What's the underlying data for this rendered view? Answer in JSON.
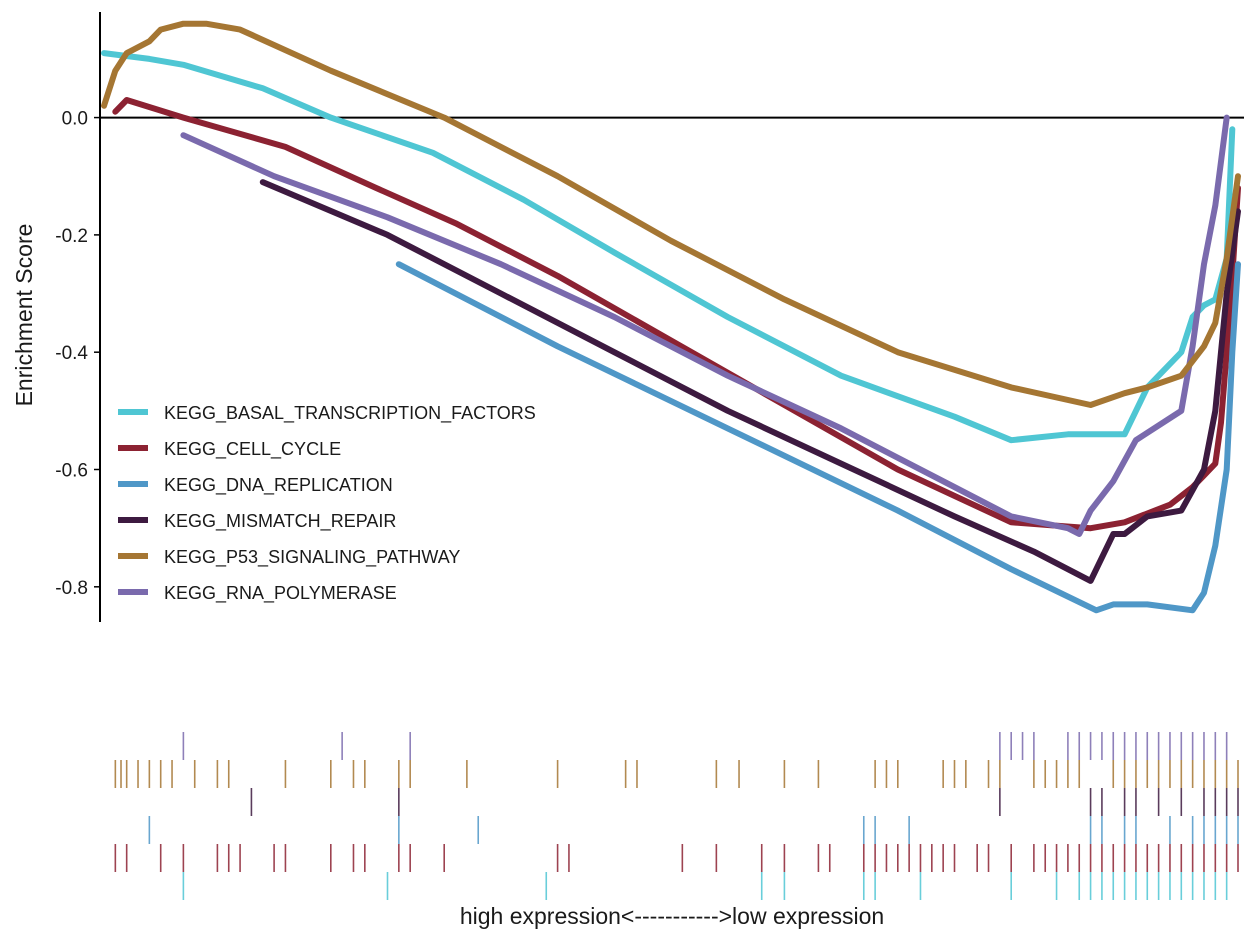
{
  "chart_data": {
    "type": "line",
    "title": "",
    "xlabel": "high expression<----------->low expression",
    "ylabel": "Enrichment Score",
    "ylim": [
      -0.86,
      0.18
    ],
    "xlim": [
      0,
      1
    ],
    "yticks": [
      0.0,
      -0.2,
      -0.4,
      -0.6,
      -0.8
    ],
    "ytick_labels": [
      "0.0",
      "-0.2",
      "-0.4",
      "-0.6",
      "-0.8"
    ],
    "reference_line": 0.0,
    "legend_position": "left-middle",
    "grid": false,
    "series": [
      {
        "name": "KEGG_BASAL_TRANSCRIPTION_FACTORS",
        "color": "#4fc6d3",
        "x": [
          0.0,
          0.04,
          0.07,
          0.14,
          0.2,
          0.29,
          0.37,
          0.45,
          0.55,
          0.65,
          0.75,
          0.8,
          0.85,
          0.88,
          0.9,
          0.92,
          0.95,
          0.96,
          0.97,
          0.98,
          0.99,
          0.995
        ],
        "y": [
          0.11,
          0.1,
          0.09,
          0.05,
          0.0,
          -0.06,
          -0.14,
          -0.23,
          -0.34,
          -0.44,
          -0.51,
          -0.55,
          -0.54,
          -0.54,
          -0.54,
          -0.46,
          -0.4,
          -0.34,
          -0.32,
          -0.31,
          -0.24,
          -0.02
        ]
      },
      {
        "name": "KEGG_CELL_CYCLE",
        "color": "#8c2232",
        "x": [
          0.01,
          0.02,
          0.07,
          0.16,
          0.24,
          0.31,
          0.4,
          0.5,
          0.6,
          0.7,
          0.8,
          0.87,
          0.9,
          0.94,
          0.96,
          0.97,
          0.98,
          0.985,
          0.99,
          0.995,
          1.0
        ],
        "y": [
          0.01,
          0.03,
          0.0,
          -0.05,
          -0.12,
          -0.18,
          -0.27,
          -0.38,
          -0.49,
          -0.6,
          -0.69,
          -0.7,
          -0.69,
          -0.66,
          -0.63,
          -0.61,
          -0.59,
          -0.52,
          -0.4,
          -0.27,
          -0.12
        ]
      },
      {
        "name": "KEGG_DNA_REPLICATION",
        "color": "#4f97c7",
        "x": [
          0.26,
          0.4,
          0.55,
          0.7,
          0.8,
          0.875,
          0.89,
          0.9,
          0.92,
          0.96,
          0.97,
          0.98,
          0.99,
          0.995,
          1.0
        ],
        "y": [
          -0.25,
          -0.39,
          -0.53,
          -0.67,
          -0.77,
          -0.84,
          -0.83,
          -0.83,
          -0.83,
          -0.84,
          -0.81,
          -0.73,
          -0.6,
          -0.4,
          -0.25
        ]
      },
      {
        "name": "KEGG_MISMATCH_REPAIR",
        "color": "#3d1a40",
        "x": [
          0.14,
          0.25,
          0.35,
          0.45,
          0.55,
          0.65,
          0.75,
          0.82,
          0.87,
          0.89,
          0.9,
          0.92,
          0.95,
          0.97,
          0.98,
          0.99,
          1.0
        ],
        "y": [
          -0.11,
          -0.2,
          -0.3,
          -0.4,
          -0.5,
          -0.59,
          -0.68,
          -0.74,
          -0.79,
          -0.71,
          -0.71,
          -0.68,
          -0.67,
          -0.6,
          -0.5,
          -0.3,
          -0.16
        ]
      },
      {
        "name": "KEGG_RNA_POLYMERASE",
        "color": "#7a6aad",
        "x": [
          0.07,
          0.15,
          0.25,
          0.35,
          0.45,
          0.55,
          0.65,
          0.75,
          0.8,
          0.85,
          0.86,
          0.87,
          0.89,
          0.91,
          0.95,
          0.96,
          0.97,
          0.98,
          0.99
        ],
        "y": [
          -0.03,
          -0.1,
          -0.17,
          -0.25,
          -0.34,
          -0.44,
          -0.53,
          -0.63,
          -0.68,
          -0.7,
          -0.71,
          -0.67,
          -0.62,
          -0.55,
          -0.5,
          -0.39,
          -0.25,
          -0.15,
          0.0
        ]
      },
      {
        "name": "KEGG_P53_SIGNALING_PATHWAY",
        "color": "#a57633",
        "x": [
          0.0,
          0.01,
          0.02,
          0.04,
          0.05,
          0.07,
          0.09,
          0.12,
          0.2,
          0.3,
          0.4,
          0.5,
          0.6,
          0.7,
          0.8,
          0.87,
          0.9,
          0.92,
          0.95,
          0.97,
          0.98,
          0.99,
          1.0
        ],
        "y": [
          0.02,
          0.08,
          0.11,
          0.13,
          0.15,
          0.16,
          0.16,
          0.15,
          0.08,
          0.0,
          -0.1,
          -0.21,
          -0.31,
          -0.4,
          -0.46,
          -0.49,
          -0.47,
          -0.46,
          -0.44,
          -0.39,
          -0.35,
          -0.24,
          -0.1
        ]
      }
    ],
    "rug_tracks": [
      {
        "series": "KEGG_RNA_POLYMERASE",
        "positions": [
          0.07,
          0.21,
          0.27,
          0.79,
          0.8,
          0.81,
          0.82,
          0.85,
          0.86,
          0.87,
          0.88,
          0.89,
          0.9,
          0.91,
          0.92,
          0.93,
          0.94,
          0.95,
          0.96,
          0.97,
          0.98,
          0.99
        ]
      },
      {
        "series": "KEGG_P53_SIGNALING_PATHWAY",
        "positions": [
          0.01,
          0.015,
          0.02,
          0.03,
          0.04,
          0.05,
          0.06,
          0.08,
          0.1,
          0.11,
          0.16,
          0.2,
          0.22,
          0.23,
          0.26,
          0.27,
          0.32,
          0.4,
          0.46,
          0.47,
          0.54,
          0.56,
          0.6,
          0.63,
          0.68,
          0.69,
          0.7,
          0.74,
          0.75,
          0.76,
          0.78,
          0.79,
          0.82,
          0.83,
          0.84,
          0.85,
          0.86,
          0.89,
          0.9,
          0.91,
          0.92,
          0.93,
          0.94,
          0.95,
          0.96,
          0.97,
          0.98,
          0.99,
          1.0
        ]
      },
      {
        "series": "KEGG_MISMATCH_REPAIR",
        "positions": [
          0.13,
          0.26,
          0.79,
          0.87,
          0.88,
          0.9,
          0.91,
          0.93,
          0.95,
          0.97,
          0.98,
          0.99,
          1.0
        ]
      },
      {
        "series": "KEGG_DNA_REPLICATION",
        "positions": [
          0.04,
          0.26,
          0.33,
          0.67,
          0.68,
          0.71,
          0.87,
          0.88,
          0.9,
          0.91,
          0.94,
          0.96,
          0.97,
          0.98,
          0.99,
          1.0
        ]
      },
      {
        "series": "KEGG_CELL_CYCLE",
        "positions": [
          0.01,
          0.02,
          0.05,
          0.07,
          0.1,
          0.11,
          0.12,
          0.15,
          0.16,
          0.2,
          0.22,
          0.23,
          0.26,
          0.27,
          0.3,
          0.4,
          0.41,
          0.51,
          0.54,
          0.58,
          0.6,
          0.63,
          0.64,
          0.67,
          0.68,
          0.69,
          0.7,
          0.71,
          0.72,
          0.73,
          0.74,
          0.75,
          0.77,
          0.78,
          0.8,
          0.82,
          0.83,
          0.84,
          0.85,
          0.86,
          0.87,
          0.88,
          0.89,
          0.9,
          0.91,
          0.92,
          0.93,
          0.94,
          0.95,
          0.96,
          0.97,
          0.98,
          0.99,
          1.0
        ]
      },
      {
        "series": "KEGG_BASAL_TRANSCRIPTION_FACTORS",
        "positions": [
          0.07,
          0.25,
          0.39,
          0.58,
          0.6,
          0.67,
          0.68,
          0.72,
          0.8,
          0.84,
          0.86,
          0.87,
          0.88,
          0.89,
          0.9,
          0.91,
          0.92,
          0.93,
          0.94,
          0.95,
          0.96,
          0.97,
          0.98,
          0.99
        ]
      }
    ]
  }
}
